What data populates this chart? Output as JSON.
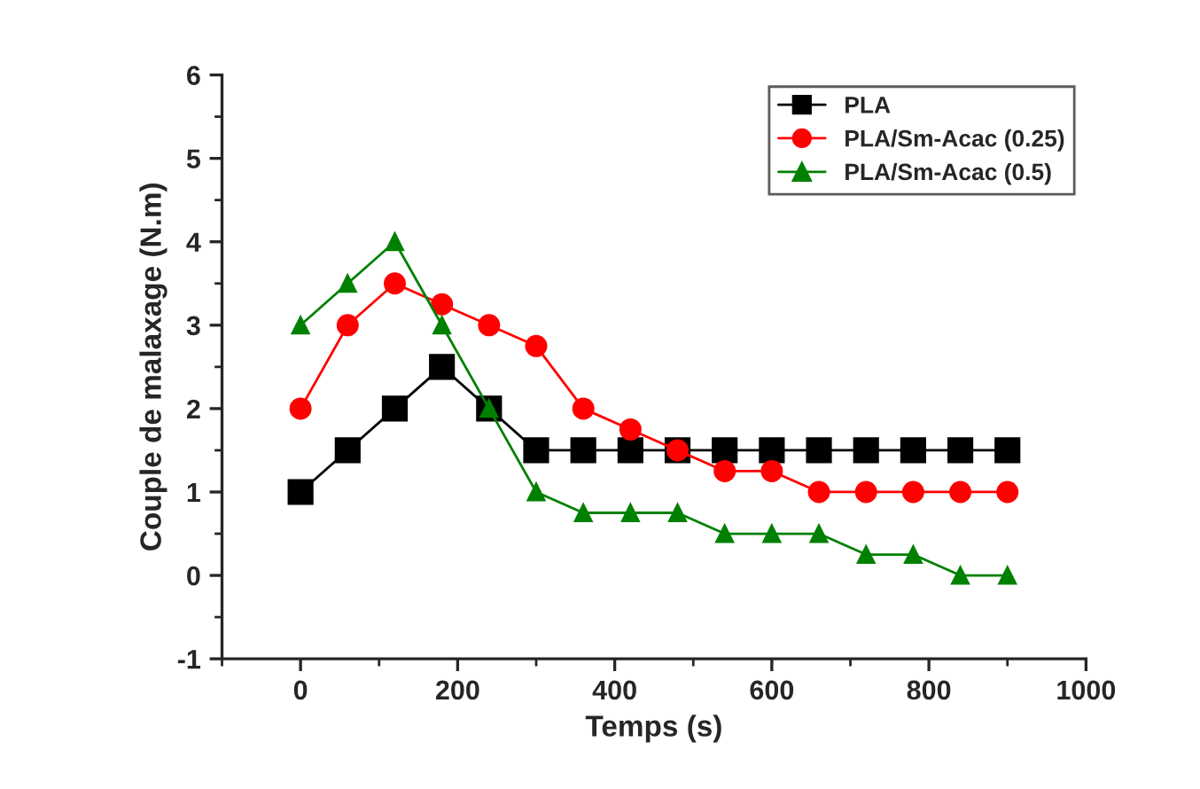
{
  "chart_data": {
    "type": "line",
    "xlabel": "Temps (s)",
    "ylabel": "Couple de malaxage (N.m)",
    "x": [
      0,
      60,
      120,
      180,
      240,
      300,
      360,
      420,
      480,
      540,
      600,
      660,
      720,
      780,
      840,
      900
    ],
    "series": [
      {
        "name": "PLA",
        "color": "#000000",
        "marker": "square",
        "values": [
          1,
          1.5,
          2,
          2.5,
          2,
          1.5,
          1.5,
          1.5,
          1.5,
          1.5,
          1.5,
          1.5,
          1.5,
          1.5,
          1.5,
          1.5
        ]
      },
      {
        "name": "PLA/Sm-Acac (0.25)",
        "color": "#ff0000",
        "marker": "circle",
        "values": [
          2,
          3,
          3.5,
          3.25,
          3,
          2.75,
          2,
          1.75,
          1.5,
          1.25,
          1.25,
          1,
          1,
          1,
          1,
          1
        ]
      },
      {
        "name": "PLA/Sm-Acac (0.5)",
        "color": "#008000",
        "marker": "triangle",
        "values": [
          3,
          3.5,
          4,
          3,
          2,
          1,
          0.75,
          0.75,
          0.75,
          0.5,
          0.5,
          0.5,
          0.25,
          0.25,
          0,
          0
        ]
      }
    ],
    "xlim": [
      -100,
      1000
    ],
    "xticks": [
      0,
      200,
      400,
      600,
      800,
      1000
    ],
    "ylim": [
      -1,
      6
    ],
    "yticks": [
      -1,
      0,
      1,
      2,
      3,
      4,
      5,
      6
    ],
    "grid": false,
    "legend": "top right",
    "line_style": "solid"
  }
}
